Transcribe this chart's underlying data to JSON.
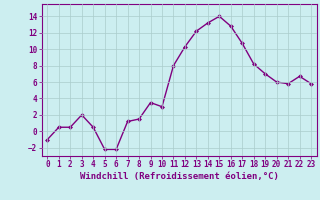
{
  "x": [
    0,
    1,
    2,
    3,
    4,
    5,
    6,
    7,
    8,
    9,
    10,
    11,
    12,
    13,
    14,
    15,
    16,
    17,
    18,
    19,
    20,
    21,
    22,
    23
  ],
  "y": [
    -1,
    0.5,
    0.5,
    2,
    0.5,
    -2.2,
    -2.2,
    1.2,
    1.5,
    3.5,
    3,
    8,
    10.3,
    12.2,
    13.2,
    14,
    12.8,
    10.7,
    8.2,
    7,
    6,
    5.8,
    6.7,
    5.8
  ],
  "line_color": "#800080",
  "marker": "D",
  "marker_size": 2,
  "bg_color": "#cceef0",
  "grid_color": "#aacccc",
  "xlabel": "Windchill (Refroidissement éolien,°C)",
  "ylabel": "",
  "ylim": [
    -3,
    15.5
  ],
  "xlim": [
    -0.5,
    23.5
  ],
  "yticks": [
    -2,
    0,
    2,
    4,
    6,
    8,
    10,
    12,
    14
  ],
  "xticks": [
    0,
    1,
    2,
    3,
    4,
    5,
    6,
    7,
    8,
    9,
    10,
    11,
    12,
    13,
    14,
    15,
    16,
    17,
    18,
    19,
    20,
    21,
    22,
    23
  ],
  "tick_color": "#800080",
  "tick_labelsize": 5.5,
  "xlabel_fontsize": 6.5,
  "xlabel_color": "#800080",
  "line_width": 1.0
}
